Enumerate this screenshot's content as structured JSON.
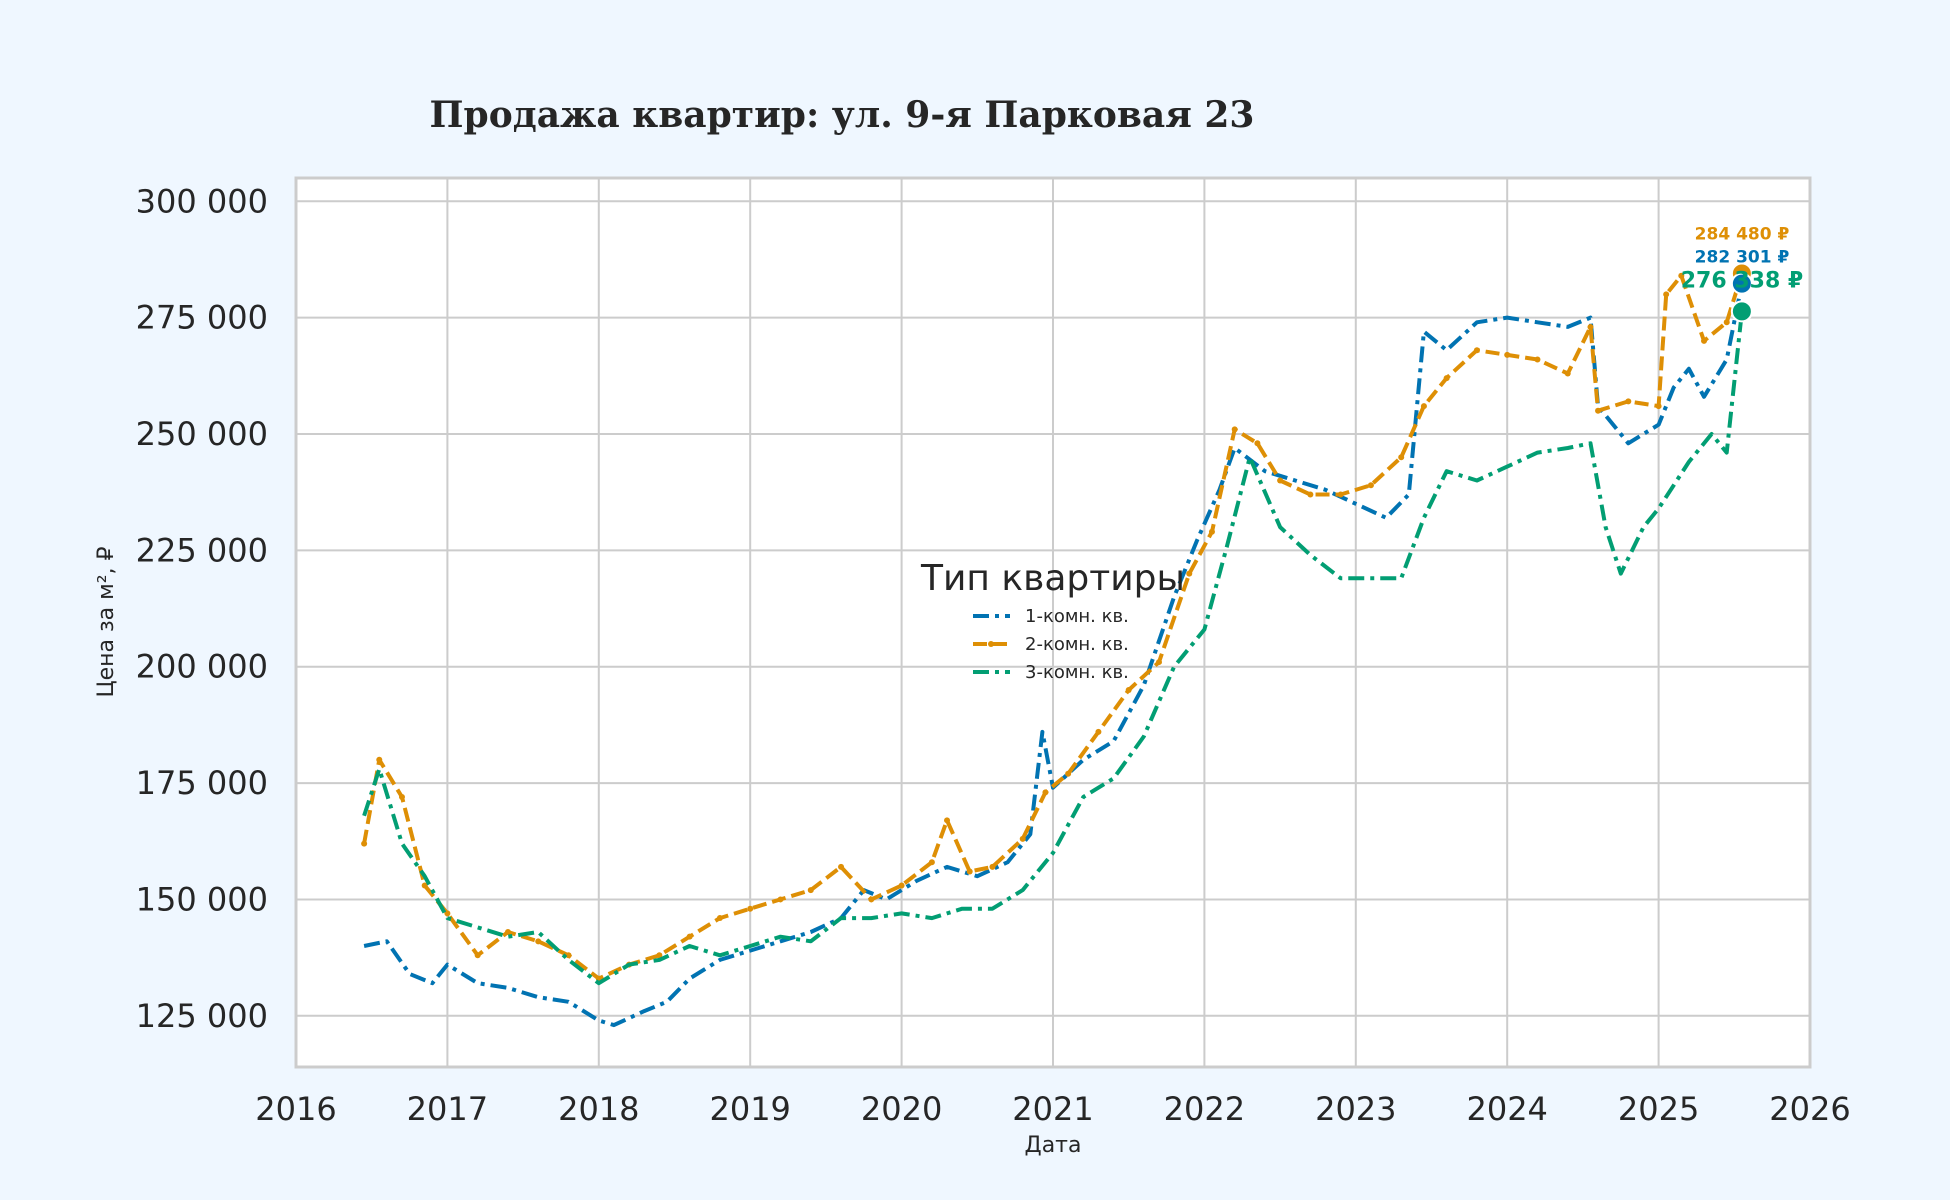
{
  "chart_data": {
    "type": "line",
    "title": "Продажа квартир: ул. 9-я Парковая 23",
    "xlabel": "Дата",
    "ylabel": "Цена за м², ₽",
    "xlim": [
      2016,
      2026
    ],
    "ylim": [
      114000,
      305000
    ],
    "x_ticks": [
      "2016",
      "2017",
      "2018",
      "2019",
      "2020",
      "2021",
      "2022",
      "2023",
      "2024",
      "2025",
      "2026"
    ],
    "y_ticks": [
      "125 000",
      "150 000",
      "175 000",
      "200 000",
      "225 000",
      "250 000",
      "275 000",
      "300 000"
    ],
    "grid": true,
    "legend": {
      "title": "Тип квартиры",
      "placement": "center"
    },
    "series": [
      {
        "name": "1-комн. кв.",
        "color": "#0173b2",
        "dash": "dashdot",
        "x": [
          2016.45,
          2016.6,
          2016.75,
          2016.9,
          2017.0,
          2017.2,
          2017.4,
          2017.6,
          2017.8,
          2018.0,
          2018.1,
          2018.3,
          2018.45,
          2018.6,
          2018.8,
          2019.0,
          2019.2,
          2019.4,
          2019.6,
          2019.75,
          2019.9,
          2020.1,
          2020.3,
          2020.5,
          2020.7,
          2020.85,
          2020.93,
          2021.0,
          2021.2,
          2021.4,
          2021.6,
          2021.8,
          2021.95,
          2022.1,
          2022.2,
          2022.4,
          2022.6,
          2022.8,
          2023.0,
          2023.2,
          2023.35,
          2023.45,
          2023.6,
          2023.8,
          2024.0,
          2024.2,
          2024.4,
          2024.55,
          2024.6,
          2024.8,
          2025.0,
          2025.1,
          2025.2,
          2025.3,
          2025.45,
          2025.55
        ],
        "y": [
          140000,
          141000,
          134000,
          132000,
          136000,
          132000,
          131000,
          129000,
          128000,
          124000,
          123000,
          126000,
          128000,
          133000,
          137000,
          139000,
          141000,
          143000,
          146000,
          152000,
          150000,
          154000,
          157000,
          155000,
          158000,
          164000,
          186000,
          174000,
          180000,
          184000,
          196000,
          215000,
          227000,
          238000,
          247000,
          242000,
          240000,
          238000,
          235000,
          232000,
          237000,
          272000,
          268000,
          274000,
          275000,
          274000,
          273000,
          275000,
          256000,
          248000,
          252000,
          260000,
          264000,
          258000,
          266000,
          282301
        ]
      },
      {
        "name": "2-комн. кв.",
        "color": "#de8f05",
        "dash": "dashed-marker",
        "x": [
          2016.45,
          2016.55,
          2016.7,
          2016.85,
          2017.0,
          2017.2,
          2017.4,
          2017.6,
          2017.8,
          2018.0,
          2018.2,
          2018.4,
          2018.6,
          2018.8,
          2019.0,
          2019.2,
          2019.4,
          2019.6,
          2019.8,
          2020.0,
          2020.2,
          2020.3,
          2020.45,
          2020.6,
          2020.8,
          2020.95,
          2021.1,
          2021.3,
          2021.5,
          2021.7,
          2021.9,
          2022.05,
          2022.2,
          2022.35,
          2022.5,
          2022.7,
          2022.9,
          2023.1,
          2023.3,
          2023.45,
          2023.6,
          2023.8,
          2024.0,
          2024.2,
          2024.4,
          2024.55,
          2024.6,
          2024.8,
          2025.0,
          2025.05,
          2025.15,
          2025.3,
          2025.45,
          2025.55
        ],
        "y": [
          162000,
          180000,
          172000,
          153000,
          147000,
          138000,
          143000,
          141000,
          138000,
          133000,
          136000,
          138000,
          142000,
          146000,
          148000,
          150000,
          152000,
          157000,
          150000,
          153000,
          158000,
          167000,
          156000,
          157000,
          163000,
          173000,
          177000,
          186000,
          195000,
          201000,
          220000,
          229000,
          251000,
          248000,
          240000,
          237000,
          237000,
          239000,
          245000,
          256000,
          262000,
          268000,
          267000,
          266000,
          263000,
          273000,
          255000,
          257000,
          256000,
          280000,
          284000,
          270000,
          274000,
          284480
        ]
      },
      {
        "name": "3-комн. кв.",
        "color": "#029e73",
        "dash": "dashdot",
        "x": [
          2016.45,
          2016.55,
          2016.7,
          2016.85,
          2017.0,
          2017.2,
          2017.4,
          2017.6,
          2017.8,
          2018.0,
          2018.2,
          2018.4,
          2018.6,
          2018.8,
          2019.0,
          2019.2,
          2019.4,
          2019.6,
          2019.8,
          2020.0,
          2020.2,
          2020.4,
          2020.6,
          2020.8,
          2021.0,
          2021.2,
          2021.4,
          2021.6,
          2021.8,
          2022.0,
          2022.15,
          2022.3,
          2022.5,
          2022.7,
          2022.9,
          2023.1,
          2023.3,
          2023.45,
          2023.6,
          2023.8,
          2024.0,
          2024.2,
          2024.4,
          2024.55,
          2024.65,
          2024.75,
          2024.9,
          2025.0,
          2025.2,
          2025.35,
          2025.45,
          2025.55
        ],
        "y": [
          168000,
          178000,
          162000,
          155000,
          146000,
          144000,
          142000,
          143000,
          137000,
          132000,
          136000,
          137000,
          140000,
          138000,
          140000,
          142000,
          141000,
          146000,
          146000,
          147000,
          146000,
          148000,
          148000,
          152000,
          160000,
          172000,
          176000,
          185000,
          200000,
          208000,
          226000,
          245000,
          230000,
          224000,
          219000,
          219000,
          219000,
          232000,
          242000,
          240000,
          243000,
          246000,
          247000,
          248000,
          230000,
          220000,
          230000,
          234000,
          244000,
          250000,
          246000,
          276338
        ]
      }
    ],
    "end_labels": [
      "284 480 ₽",
      "282 301 ₽",
      "276 338 ₽"
    ]
  }
}
